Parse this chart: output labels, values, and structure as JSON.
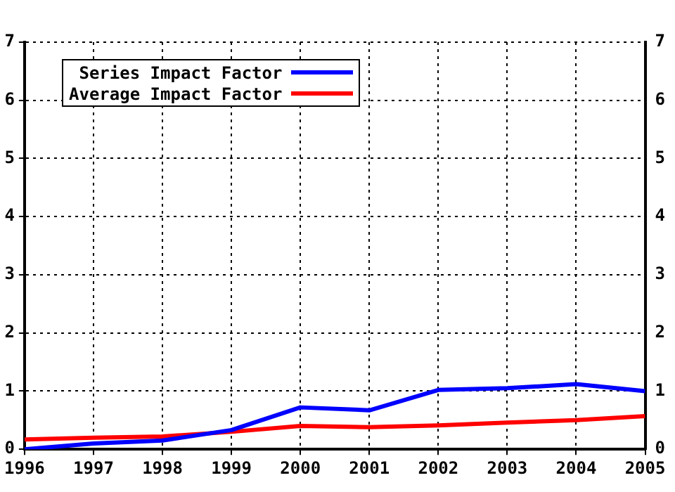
{
  "chart_data": {
    "type": "line",
    "x": [
      1996,
      1997,
      1998,
      1999,
      2000,
      2001,
      2002,
      2003,
      2004,
      2005
    ],
    "series": [
      {
        "name": "Series Impact Factor",
        "color": "#0000ff",
        "values": [
          0.0,
          0.1,
          0.15,
          0.33,
          0.72,
          0.67,
          1.02,
          1.05,
          1.12,
          1.0
        ]
      },
      {
        "name": "Average Impact Factor",
        "color": "#ff0000",
        "values": [
          0.17,
          0.2,
          0.22,
          0.3,
          0.4,
          0.38,
          0.41,
          0.46,
          0.5,
          0.57
        ]
      }
    ],
    "xlim": [
      1996,
      2005
    ],
    "xticks": [
      1996,
      1997,
      1998,
      1999,
      2000,
      2001,
      2002,
      2003,
      2004,
      2005
    ],
    "ylim": [
      0,
      7
    ],
    "yticks": [
      0,
      1,
      2,
      3,
      4,
      5,
      6,
      7
    ],
    "y2lim": [
      0,
      7
    ],
    "y2ticks": [
      0,
      1,
      2,
      3,
      4,
      5,
      6,
      7
    ],
    "grid": true,
    "legend": "top left",
    "marker": "none",
    "line_style": "solid"
  }
}
